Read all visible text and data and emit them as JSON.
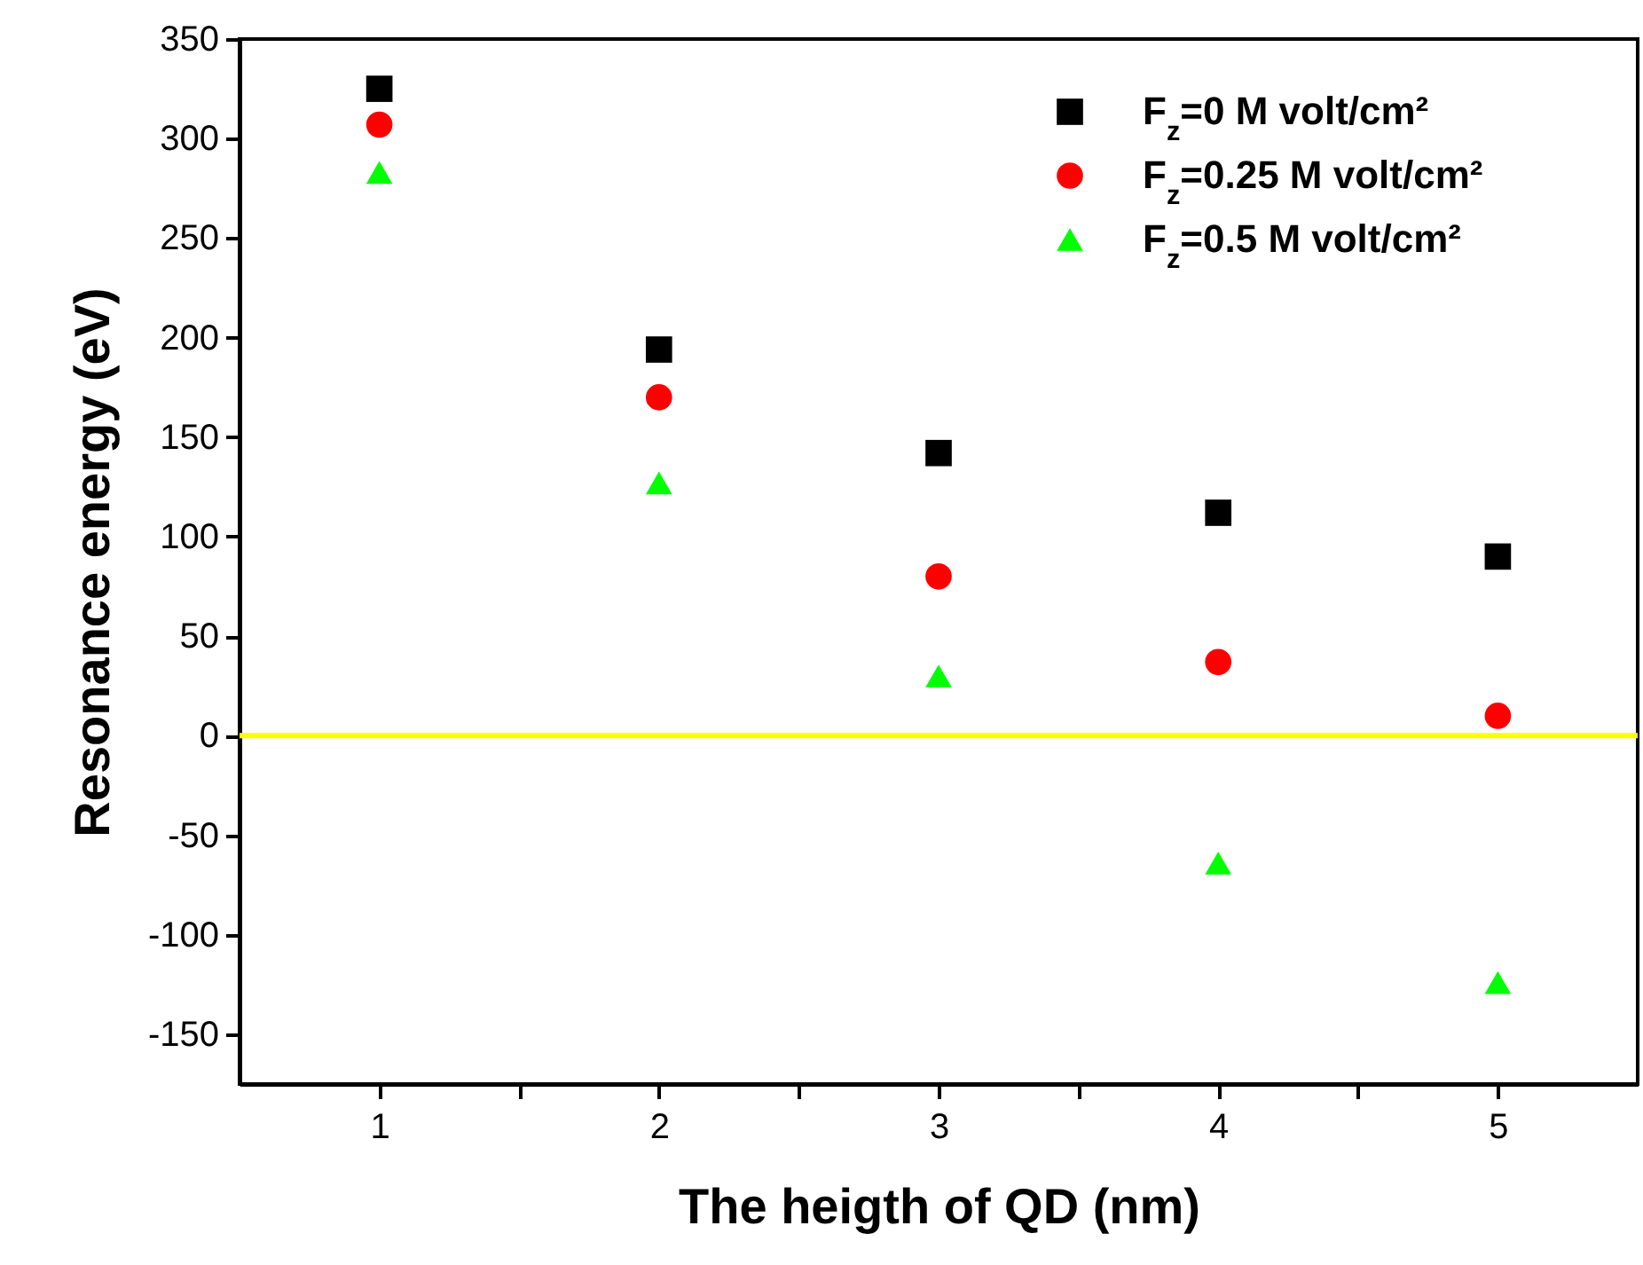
{
  "chart_data": {
    "type": "scatter",
    "xlabel": "The heigth of QD (nm)",
    "ylabel": "Resonance energy (eV)",
    "x": [
      1,
      2,
      3,
      4,
      5
    ],
    "series": [
      {
        "name": "F$_{z}$=0 M volt/cm²",
        "color": "#000000",
        "marker": "square",
        "values": [
          325,
          194,
          142,
          112,
          90
        ]
      },
      {
        "name": "F$_{z}$=0.25 M volt/cm²",
        "color": "#ff0000",
        "marker": "circle",
        "values": [
          307,
          170,
          80,
          37,
          10
        ]
      },
      {
        "name": "F$_{z}$=0.5 M volt/cm²",
        "color": "#00ff00",
        "marker": "triangle",
        "values": [
          283,
          127,
          30,
          -64,
          -124
        ]
      }
    ],
    "xlim": [
      0.5,
      5.5
    ],
    "xticks": [
      1,
      {
        "value": 1.5,
        "label": null
      },
      2,
      {
        "value": 2.5,
        "label": null
      },
      3,
      {
        "value": 3.5,
        "label": null
      },
      4,
      {
        "value": 4.5,
        "label": null
      },
      5
    ],
    "ylim": [
      -175,
      350
    ],
    "yticks": [
      -150,
      -100,
      -50,
      0,
      50,
      100,
      150,
      200,
      250,
      300,
      350
    ],
    "ref_lines": [
      {
        "axis": "y",
        "value": 0,
        "color": "#ffff00"
      }
    ],
    "legend": "top right",
    "grid": false
  }
}
